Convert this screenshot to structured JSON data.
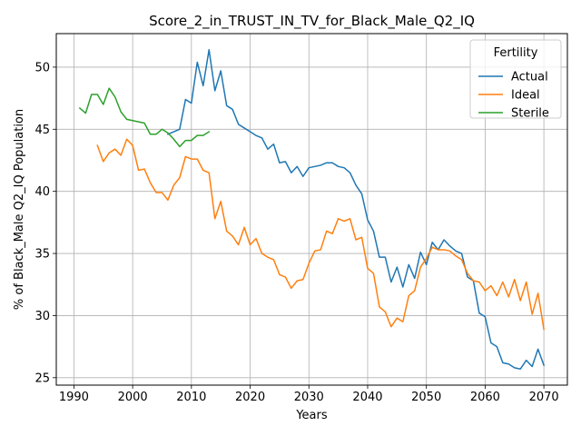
{
  "chart_data": {
    "type": "line",
    "title": "Score_2_in_TRUST_IN_TV_for_Black_Male_Q2_IQ",
    "xlabel": "Years",
    "ylabel": "% of Black_Male Q2_IQ Population",
    "xlim": [
      1987,
      2074
    ],
    "ylim": [
      24.4,
      52.7
    ],
    "xticks": [
      1990,
      2000,
      2010,
      2020,
      2030,
      2040,
      2050,
      2060,
      2070
    ],
    "yticks": [
      25,
      30,
      35,
      40,
      45,
      50
    ],
    "grid": true,
    "legend": {
      "title": "Fertility",
      "placement": "top-right"
    },
    "series": [
      {
        "name": "Actual",
        "color": "#1f77b4",
        "x": [
          2006,
          2007,
          2008,
          2009,
          2010,
          2011,
          2012,
          2013,
          2014,
          2015,
          2016,
          2017,
          2018,
          2019,
          2020,
          2021,
          2022,
          2023,
          2024,
          2025,
          2026,
          2027,
          2028,
          2029,
          2030,
          2031,
          2032,
          2033,
          2034,
          2035,
          2036,
          2037,
          2038,
          2039,
          2040,
          2041,
          2042,
          2043,
          2044,
          2045,
          2046,
          2047,
          2048,
          2049,
          2050,
          2051,
          2052,
          2053,
          2054,
          2055,
          2056,
          2057,
          2058,
          2059,
          2060,
          2061,
          2062,
          2063,
          2064,
          2065,
          2066,
          2067,
          2068,
          2069,
          2070
        ],
        "y": [
          44.6,
          44.8,
          45.0,
          47.4,
          47.1,
          50.4,
          48.5,
          51.4,
          48.1,
          49.7,
          46.9,
          46.6,
          45.4,
          45.1,
          44.8,
          44.5,
          44.3,
          43.4,
          43.8,
          42.3,
          42.4,
          41.5,
          42.0,
          41.2,
          41.9,
          42.0,
          42.1,
          42.3,
          42.3,
          42.0,
          41.9,
          41.5,
          40.5,
          39.8,
          37.7,
          36.8,
          34.7,
          34.7,
          32.7,
          33.9,
          32.3,
          34.1,
          33.0,
          35.1,
          34.1,
          35.9,
          35.3,
          36.1,
          35.6,
          35.2,
          35.0,
          33.1,
          32.8,
          30.2,
          29.9,
          27.8,
          27.5,
          26.2,
          26.1,
          25.8,
          25.7,
          26.4,
          25.9,
          27.3,
          26.0
        ]
      },
      {
        "name": "Ideal",
        "color": "#ff7f0e",
        "x": [
          1994,
          1995,
          1996,
          1997,
          1998,
          1999,
          2000,
          2001,
          2002,
          2003,
          2004,
          2005,
          2006,
          2007,
          2008,
          2009,
          2010,
          2011,
          2012,
          2013,
          2014,
          2015,
          2016,
          2017,
          2018,
          2019,
          2020,
          2021,
          2022,
          2023,
          2024,
          2025,
          2026,
          2027,
          2028,
          2029,
          2030,
          2031,
          2032,
          2033,
          2034,
          2035,
          2036,
          2037,
          2038,
          2039,
          2040,
          2041,
          2042,
          2043,
          2044,
          2045,
          2046,
          2047,
          2048,
          2049,
          2050,
          2051,
          2052,
          2053,
          2054,
          2055,
          2056,
          2057,
          2058,
          2059,
          2060,
          2061,
          2062,
          2063,
          2064,
          2065,
          2066,
          2067,
          2068,
          2069,
          2070
        ],
        "y": [
          43.7,
          42.4,
          43.1,
          43.4,
          42.9,
          44.2,
          43.7,
          41.7,
          41.8,
          40.7,
          39.9,
          39.9,
          39.3,
          40.5,
          41.1,
          42.8,
          42.6,
          42.6,
          41.7,
          41.5,
          37.8,
          39.2,
          36.8,
          36.4,
          35.7,
          37.1,
          35.7,
          36.2,
          35.0,
          34.7,
          34.5,
          33.3,
          33.1,
          32.2,
          32.8,
          32.9,
          34.2,
          35.2,
          35.3,
          36.8,
          36.6,
          37.8,
          37.6,
          37.8,
          36.1,
          36.3,
          33.8,
          33.4,
          30.7,
          30.3,
          29.1,
          29.8,
          29.5,
          31.6,
          32.0,
          33.9,
          34.6,
          35.5,
          35.3,
          35.3,
          35.2,
          34.8,
          34.5,
          33.4,
          32.8,
          32.7,
          32.0,
          32.4,
          31.6,
          32.7,
          31.5,
          32.9,
          31.2,
          32.7,
          30.1,
          31.8,
          28.9
        ]
      },
      {
        "name": "Sterile",
        "color": "#2ca02c",
        "x": [
          1991,
          1992,
          1993,
          1994,
          1995,
          1996,
          1997,
          1998,
          1999,
          2000,
          2001,
          2002,
          2003,
          2004,
          2005,
          2006,
          2007,
          2008,
          2009,
          2010,
          2011,
          2012,
          2013
        ],
        "y": [
          46.7,
          46.3,
          47.8,
          47.8,
          47.0,
          48.3,
          47.6,
          46.4,
          45.8,
          45.7,
          45.6,
          45.5,
          44.6,
          44.6,
          45.0,
          44.7,
          44.2,
          43.6,
          44.1,
          44.1,
          44.5,
          44.5,
          44.8
        ]
      }
    ]
  }
}
